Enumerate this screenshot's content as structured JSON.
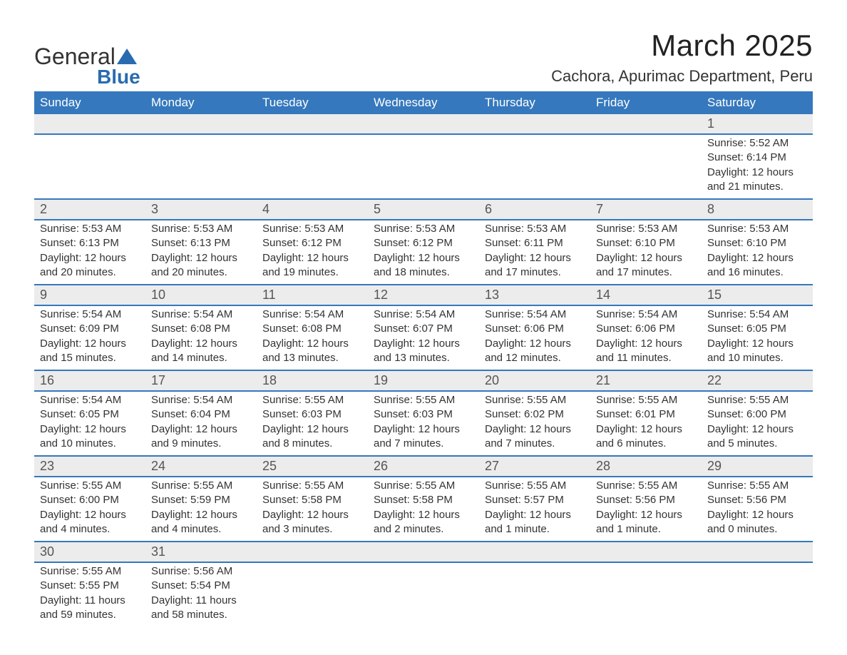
{
  "logo": {
    "word1": "General",
    "word2": "Blue",
    "icon_name": "logo-triangle-icon",
    "icon_color": "#2a6bb0"
  },
  "header": {
    "month_title": "March 2025",
    "location": "Cachora, Apurimac Department, Peru"
  },
  "calendar": {
    "type": "table",
    "columns": [
      "Sunday",
      "Monday",
      "Tuesday",
      "Wednesday",
      "Thursday",
      "Friday",
      "Saturday"
    ],
    "header_bg": "#3578bd",
    "header_text_color": "#ffffff",
    "daynum_bg": "#ececec",
    "row_border_color": "#3578bd",
    "body_text_color": "#333333",
    "font_size_body": 15,
    "font_size_header": 17,
    "weeks": [
      [
        null,
        null,
        null,
        null,
        null,
        null,
        {
          "day": "1",
          "sunrise": "Sunrise: 5:52 AM",
          "sunset": "Sunset: 6:14 PM",
          "daylight": "Daylight: 12 hours and 21 minutes."
        }
      ],
      [
        {
          "day": "2",
          "sunrise": "Sunrise: 5:53 AM",
          "sunset": "Sunset: 6:13 PM",
          "daylight": "Daylight: 12 hours and 20 minutes."
        },
        {
          "day": "3",
          "sunrise": "Sunrise: 5:53 AM",
          "sunset": "Sunset: 6:13 PM",
          "daylight": "Daylight: 12 hours and 20 minutes."
        },
        {
          "day": "4",
          "sunrise": "Sunrise: 5:53 AM",
          "sunset": "Sunset: 6:12 PM",
          "daylight": "Daylight: 12 hours and 19 minutes."
        },
        {
          "day": "5",
          "sunrise": "Sunrise: 5:53 AM",
          "sunset": "Sunset: 6:12 PM",
          "daylight": "Daylight: 12 hours and 18 minutes."
        },
        {
          "day": "6",
          "sunrise": "Sunrise: 5:53 AM",
          "sunset": "Sunset: 6:11 PM",
          "daylight": "Daylight: 12 hours and 17 minutes."
        },
        {
          "day": "7",
          "sunrise": "Sunrise: 5:53 AM",
          "sunset": "Sunset: 6:10 PM",
          "daylight": "Daylight: 12 hours and 17 minutes."
        },
        {
          "day": "8",
          "sunrise": "Sunrise: 5:53 AM",
          "sunset": "Sunset: 6:10 PM",
          "daylight": "Daylight: 12 hours and 16 minutes."
        }
      ],
      [
        {
          "day": "9",
          "sunrise": "Sunrise: 5:54 AM",
          "sunset": "Sunset: 6:09 PM",
          "daylight": "Daylight: 12 hours and 15 minutes."
        },
        {
          "day": "10",
          "sunrise": "Sunrise: 5:54 AM",
          "sunset": "Sunset: 6:08 PM",
          "daylight": "Daylight: 12 hours and 14 minutes."
        },
        {
          "day": "11",
          "sunrise": "Sunrise: 5:54 AM",
          "sunset": "Sunset: 6:08 PM",
          "daylight": "Daylight: 12 hours and 13 minutes."
        },
        {
          "day": "12",
          "sunrise": "Sunrise: 5:54 AM",
          "sunset": "Sunset: 6:07 PM",
          "daylight": "Daylight: 12 hours and 13 minutes."
        },
        {
          "day": "13",
          "sunrise": "Sunrise: 5:54 AM",
          "sunset": "Sunset: 6:06 PM",
          "daylight": "Daylight: 12 hours and 12 minutes."
        },
        {
          "day": "14",
          "sunrise": "Sunrise: 5:54 AM",
          "sunset": "Sunset: 6:06 PM",
          "daylight": "Daylight: 12 hours and 11 minutes."
        },
        {
          "day": "15",
          "sunrise": "Sunrise: 5:54 AM",
          "sunset": "Sunset: 6:05 PM",
          "daylight": "Daylight: 12 hours and 10 minutes."
        }
      ],
      [
        {
          "day": "16",
          "sunrise": "Sunrise: 5:54 AM",
          "sunset": "Sunset: 6:05 PM",
          "daylight": "Daylight: 12 hours and 10 minutes."
        },
        {
          "day": "17",
          "sunrise": "Sunrise: 5:54 AM",
          "sunset": "Sunset: 6:04 PM",
          "daylight": "Daylight: 12 hours and 9 minutes."
        },
        {
          "day": "18",
          "sunrise": "Sunrise: 5:55 AM",
          "sunset": "Sunset: 6:03 PM",
          "daylight": "Daylight: 12 hours and 8 minutes."
        },
        {
          "day": "19",
          "sunrise": "Sunrise: 5:55 AM",
          "sunset": "Sunset: 6:03 PM",
          "daylight": "Daylight: 12 hours and 7 minutes."
        },
        {
          "day": "20",
          "sunrise": "Sunrise: 5:55 AM",
          "sunset": "Sunset: 6:02 PM",
          "daylight": "Daylight: 12 hours and 7 minutes."
        },
        {
          "day": "21",
          "sunrise": "Sunrise: 5:55 AM",
          "sunset": "Sunset: 6:01 PM",
          "daylight": "Daylight: 12 hours and 6 minutes."
        },
        {
          "day": "22",
          "sunrise": "Sunrise: 5:55 AM",
          "sunset": "Sunset: 6:00 PM",
          "daylight": "Daylight: 12 hours and 5 minutes."
        }
      ],
      [
        {
          "day": "23",
          "sunrise": "Sunrise: 5:55 AM",
          "sunset": "Sunset: 6:00 PM",
          "daylight": "Daylight: 12 hours and 4 minutes."
        },
        {
          "day": "24",
          "sunrise": "Sunrise: 5:55 AM",
          "sunset": "Sunset: 5:59 PM",
          "daylight": "Daylight: 12 hours and 4 minutes."
        },
        {
          "day": "25",
          "sunrise": "Sunrise: 5:55 AM",
          "sunset": "Sunset: 5:58 PM",
          "daylight": "Daylight: 12 hours and 3 minutes."
        },
        {
          "day": "26",
          "sunrise": "Sunrise: 5:55 AM",
          "sunset": "Sunset: 5:58 PM",
          "daylight": "Daylight: 12 hours and 2 minutes."
        },
        {
          "day": "27",
          "sunrise": "Sunrise: 5:55 AM",
          "sunset": "Sunset: 5:57 PM",
          "daylight": "Daylight: 12 hours and 1 minute."
        },
        {
          "day": "28",
          "sunrise": "Sunrise: 5:55 AM",
          "sunset": "Sunset: 5:56 PM",
          "daylight": "Daylight: 12 hours and 1 minute."
        },
        {
          "day": "29",
          "sunrise": "Sunrise: 5:55 AM",
          "sunset": "Sunset: 5:56 PM",
          "daylight": "Daylight: 12 hours and 0 minutes."
        }
      ],
      [
        {
          "day": "30",
          "sunrise": "Sunrise: 5:55 AM",
          "sunset": "Sunset: 5:55 PM",
          "daylight": "Daylight: 11 hours and 59 minutes."
        },
        {
          "day": "31",
          "sunrise": "Sunrise: 5:56 AM",
          "sunset": "Sunset: 5:54 PM",
          "daylight": "Daylight: 11 hours and 58 minutes."
        },
        null,
        null,
        null,
        null,
        null
      ]
    ]
  }
}
